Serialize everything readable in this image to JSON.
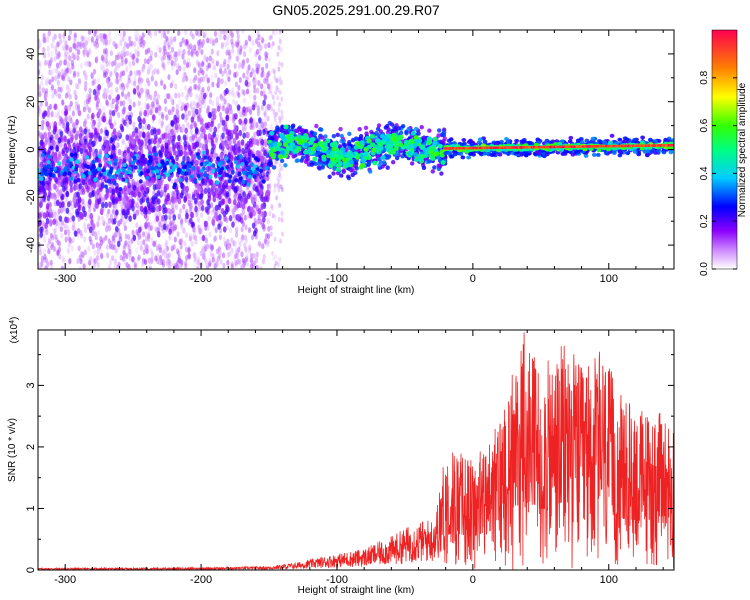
{
  "figure_title": "GN05.2025.291.00.29.R07",
  "chart_data": [
    {
      "type": "heatmap",
      "title": "GN05.2025.291.00.29.R07",
      "xlabel": "Height of straight line (km)",
      "ylabel": "Frequency (Hz)",
      "xlim": [
        -320,
        148
      ],
      "ylim": [
        -50,
        50
      ],
      "xticks": [
        -300,
        -200,
        -100,
        0,
        100
      ],
      "yticks": [
        -40,
        -20,
        0,
        20,
        40
      ],
      "colorbar": {
        "label": "Normalized spectral amplitude",
        "range": [
          0,
          1
        ],
        "ticks": [
          "0.0",
          "0.2",
          "0.4",
          "0.6",
          "0.8"
        ],
        "colors": [
          "#ffffff",
          "#8b00ff",
          "#0000ff",
          "#00ffff",
          "#00ff00",
          "#ffff00",
          "#ff8000",
          "#ff0040"
        ]
      },
      "regions": [
        {
          "name": "noise",
          "x_range": [
            -320,
            -150
          ],
          "freq_spread": [
            -50,
            50
          ],
          "center_freq": -8,
          "amplitude": 0.2
        },
        {
          "name": "transition",
          "x_range": [
            -150,
            -20
          ],
          "freq_spread": [
            -10,
            12
          ],
          "center_freq": 0,
          "amplitude": 0.45
        },
        {
          "name": "signal",
          "x_range": [
            -20,
            148
          ],
          "freq_spread": [
            -2,
            3
          ],
          "center_freq": 0.5,
          "amplitude": 0.95
        }
      ]
    },
    {
      "type": "line",
      "title": "",
      "xlabel": "Height of straight line (km)",
      "ylabel": "SNR (10 * v/v)",
      "y_exponent_label": "(x10",
      "y_exponent_value": "4",
      "y_exponent_close": ")",
      "xlim": [
        -320,
        148
      ],
      "ylim": [
        0,
        3.9
      ],
      "xticks": [
        -300,
        -200,
        -100,
        0,
        100
      ],
      "yticks": [
        0,
        1,
        2,
        3
      ],
      "series_color": "#ee2222",
      "envelope": [
        {
          "x": -320,
          "y": 0.03
        },
        {
          "x": -200,
          "y": 0.04
        },
        {
          "x": -150,
          "y": 0.06
        },
        {
          "x": -130,
          "y": 0.12
        },
        {
          "x": -110,
          "y": 0.22
        },
        {
          "x": -80,
          "y": 0.35
        },
        {
          "x": -60,
          "y": 0.55
        },
        {
          "x": -45,
          "y": 0.75
        },
        {
          "x": -30,
          "y": 0.85
        },
        {
          "x": -25,
          "y": 1.2
        },
        {
          "x": -22,
          "y": 1.8
        },
        {
          "x": -15,
          "y": 2.0
        },
        {
          "x": 0,
          "y": 1.8
        },
        {
          "x": 15,
          "y": 2.2
        },
        {
          "x": 30,
          "y": 3.4
        },
        {
          "x": 38,
          "y": 3.9
        },
        {
          "x": 50,
          "y": 3.3
        },
        {
          "x": 60,
          "y": 3.5
        },
        {
          "x": 70,
          "y": 3.8
        },
        {
          "x": 80,
          "y": 3.3
        },
        {
          "x": 95,
          "y": 3.6
        },
        {
          "x": 110,
          "y": 2.8
        },
        {
          "x": 130,
          "y": 2.6
        },
        {
          "x": 148,
          "y": 2.5
        }
      ]
    }
  ]
}
